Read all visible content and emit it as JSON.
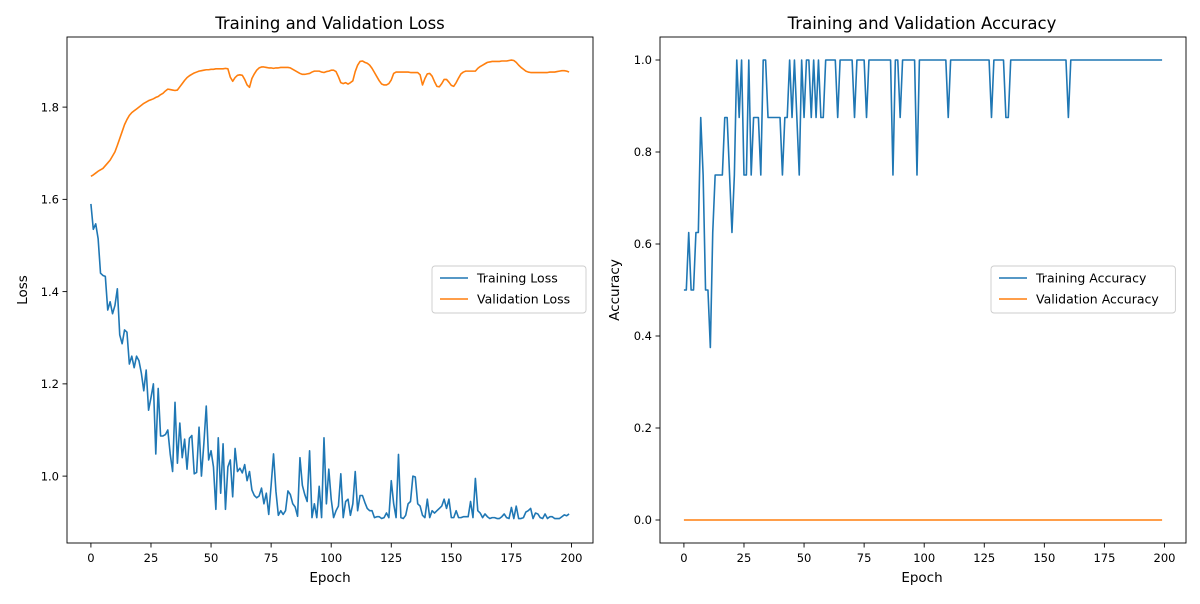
{
  "chart_data": [
    {
      "type": "line",
      "title": "Training and Validation Loss",
      "xlabel": "Epoch",
      "ylabel": "Loss",
      "xlim": [
        -9.95,
        208.95
      ],
      "ylim": [
        0.855,
        1.952
      ],
      "xticks": [
        0,
        25,
        50,
        75,
        100,
        125,
        150,
        175,
        200
      ],
      "yticks": [
        1.0,
        1.2,
        1.4,
        1.6,
        1.8
      ],
      "ytick_labels": [
        "1.0",
        "1.2",
        "1.4",
        "1.6",
        "1.8"
      ],
      "grid": false,
      "legend": "center-right",
      "series": [
        {
          "name": "Training Loss",
          "color": "#1f77b4",
          "values": [
            1.59,
            1.535,
            1.547,
            1.515,
            1.44,
            1.435,
            1.433,
            1.36,
            1.378,
            1.352,
            1.37,
            1.406,
            1.306,
            1.287,
            1.317,
            1.312,
            1.243,
            1.26,
            1.235,
            1.26,
            1.25,
            1.223,
            1.185,
            1.23,
            1.143,
            1.17,
            1.2,
            1.048,
            1.19,
            1.087,
            1.087,
            1.09,
            1.1,
            1.048,
            1.01,
            1.16,
            1.028,
            1.115,
            1.04,
            1.08,
            1.015,
            1.082,
            1.088,
            1.005,
            1.008,
            1.106,
            1.0,
            1.07,
            1.152,
            1.035,
            1.055,
            1.02,
            0.928,
            1.083,
            0.963,
            1.07,
            0.928,
            1.02,
            1.035,
            0.955,
            1.06,
            1.01,
            1.017,
            1.007,
            1.025,
            0.99,
            1.01,
            0.97,
            0.958,
            0.953,
            0.957,
            0.974,
            0.94,
            0.963,
            0.917,
            0.98,
            1.048,
            0.967,
            0.915,
            0.925,
            0.917,
            0.925,
            0.968,
            0.96,
            0.94,
            0.933,
            0.913,
            1.04,
            0.98,
            0.96,
            0.945,
            1.055,
            0.91,
            0.94,
            0.91,
            0.978,
            0.91,
            1.083,
            0.94,
            1.015,
            0.95,
            0.91,
            0.925,
            0.935,
            1.005,
            0.91,
            0.945,
            0.95,
            0.915,
            0.94,
            1.01,
            0.925,
            0.958,
            0.958,
            0.943,
            0.93,
            0.925,
            0.925,
            0.91,
            0.912,
            0.912,
            0.908,
            0.91,
            0.92,
            0.91,
            0.99,
            0.94,
            0.91,
            1.047,
            0.91,
            0.908,
            0.915,
            0.94,
            0.945,
            1.0,
            0.998,
            0.94,
            0.935,
            0.915,
            0.91,
            0.95,
            0.91,
            0.925,
            0.92,
            0.925,
            0.93,
            0.935,
            0.95,
            0.93,
            0.95,
            0.91,
            0.91,
            0.925,
            0.91,
            0.91,
            0.912,
            0.912,
            0.912,
            0.945,
            0.91,
            0.995,
            0.925,
            0.92,
            0.91,
            0.918,
            0.912,
            0.908,
            0.91,
            0.91,
            0.908,
            0.908,
            0.912,
            0.918,
            0.91,
            0.908,
            0.932,
            0.908,
            0.935,
            0.908,
            0.908,
            0.91,
            0.922,
            0.925,
            0.93,
            0.908,
            0.92,
            0.918,
            0.91,
            0.908,
            0.918,
            0.908,
            0.912,
            0.912,
            0.908,
            0.908,
            0.908,
            0.912,
            0.916,
            0.914,
            0.918
          ]
        },
        {
          "name": "Validation Loss",
          "color": "#ff7f0e",
          "values": [
            1.65,
            1.653,
            1.657,
            1.661,
            1.664,
            1.667,
            1.673,
            1.679,
            1.685,
            1.694,
            1.703,
            1.717,
            1.732,
            1.747,
            1.762,
            1.773,
            1.782,
            1.788,
            1.792,
            1.796,
            1.8,
            1.804,
            1.808,
            1.811,
            1.814,
            1.816,
            1.818,
            1.821,
            1.823,
            1.827,
            1.83,
            1.835,
            1.839,
            1.838,
            1.837,
            1.836,
            1.837,
            1.844,
            1.851,
            1.858,
            1.864,
            1.868,
            1.871,
            1.874,
            1.876,
            1.878,
            1.879,
            1.88,
            1.881,
            1.881,
            1.882,
            1.882,
            1.883,
            1.883,
            1.883,
            1.883,
            1.884,
            1.883,
            1.865,
            1.856,
            1.864,
            1.869,
            1.87,
            1.869,
            1.86,
            1.848,
            1.843,
            1.862,
            1.872,
            1.88,
            1.885,
            1.887,
            1.887,
            1.886,
            1.885,
            1.885,
            1.884,
            1.885,
            1.885,
            1.886,
            1.886,
            1.886,
            1.886,
            1.885,
            1.882,
            1.879,
            1.876,
            1.873,
            1.871,
            1.871,
            1.872,
            1.873,
            1.876,
            1.878,
            1.878,
            1.878,
            1.876,
            1.875,
            1.877,
            1.878,
            1.88,
            1.88,
            1.877,
            1.866,
            1.853,
            1.851,
            1.853,
            1.85,
            1.853,
            1.857,
            1.877,
            1.891,
            1.899,
            1.9,
            1.897,
            1.895,
            1.891,
            1.884,
            1.875,
            1.866,
            1.857,
            1.85,
            1.848,
            1.848,
            1.851,
            1.859,
            1.873,
            1.876,
            1.876,
            1.876,
            1.876,
            1.876,
            1.876,
            1.875,
            1.875,
            1.875,
            1.875,
            1.87,
            1.848,
            1.862,
            1.872,
            1.873,
            1.867,
            1.855,
            1.845,
            1.844,
            1.851,
            1.86,
            1.86,
            1.854,
            1.847,
            1.845,
            1.853,
            1.863,
            1.872,
            1.876,
            1.878,
            1.878,
            1.878,
            1.878,
            1.878,
            1.884,
            1.888,
            1.891,
            1.894,
            1.897,
            1.898,
            1.899,
            1.899,
            1.899,
            1.899,
            1.9,
            1.9,
            1.9,
            1.901,
            1.902,
            1.901,
            1.897,
            1.891,
            1.886,
            1.882,
            1.878,
            1.876,
            1.875,
            1.875,
            1.875,
            1.875,
            1.875,
            1.875,
            1.875,
            1.875,
            1.876,
            1.876,
            1.876,
            1.877,
            1.878,
            1.879,
            1.879,
            1.878,
            1.876
          ]
        }
      ]
    },
    {
      "type": "line",
      "title": "Training and Validation Accuracy",
      "xlabel": "Epoch",
      "ylabel": "Accuracy",
      "xlim": [
        -9.95,
        208.95
      ],
      "ylim": [
        -0.05,
        1.05
      ],
      "xticks": [
        0,
        25,
        50,
        75,
        100,
        125,
        150,
        175,
        200
      ],
      "yticks": [
        0.0,
        0.2,
        0.4,
        0.6,
        0.8,
        1.0
      ],
      "ytick_labels": [
        "0.0",
        "0.2",
        "0.4",
        "0.6",
        "0.8",
        "1.0"
      ],
      "grid": false,
      "legend": "center-right",
      "series": [
        {
          "name": "Training Accuracy",
          "color": "#1f77b4",
          "values": [
            0.5,
            0.5,
            0.625,
            0.5,
            0.5,
            0.625,
            0.625,
            0.875,
            0.75,
            0.5,
            0.5,
            0.375,
            0.625,
            0.75,
            0.75,
            0.75,
            0.75,
            0.875,
            0.875,
            0.75,
            0.625,
            0.75,
            1.0,
            0.875,
            1.0,
            0.75,
            0.75,
            1.0,
            0.75,
            0.875,
            0.875,
            0.875,
            0.75,
            1.0,
            1.0,
            0.875,
            0.875,
            0.875,
            0.875,
            0.875,
            0.875,
            0.75,
            0.875,
            0.875,
            1.0,
            0.875,
            1.0,
            0.875,
            0.75,
            1.0,
            0.875,
            1.0,
            1.0,
            0.875,
            1.0,
            0.875,
            1.0,
            0.875,
            0.875,
            1.0,
            1.0,
            1.0,
            1.0,
            1.0,
            0.875,
            1.0,
            1.0,
            1.0,
            1.0,
            1.0,
            1.0,
            0.875,
            1.0,
            1.0,
            1.0,
            1.0,
            0.875,
            1.0,
            1.0,
            1.0,
            1.0,
            1.0,
            1.0,
            1.0,
            1.0,
            1.0,
            1.0,
            0.75,
            1.0,
            1.0,
            0.875,
            1.0,
            1.0,
            1.0,
            1.0,
            1.0,
            1.0,
            0.75,
            1.0,
            1.0,
            1.0,
            1.0,
            1.0,
            1.0,
            1.0,
            1.0,
            1.0,
            1.0,
            1.0,
            1.0,
            0.875,
            1.0,
            1.0,
            1.0,
            1.0,
            1.0,
            1.0,
            1.0,
            1.0,
            1.0,
            1.0,
            1.0,
            1.0,
            1.0,
            1.0,
            1.0,
            1.0,
            1.0,
            0.875,
            1.0,
            1.0,
            1.0,
            1.0,
            1.0,
            0.875,
            0.875,
            1.0,
            1.0,
            1.0,
            1.0,
            1.0,
            1.0,
            1.0,
            1.0,
            1.0,
            1.0,
            1.0,
            1.0,
            1.0,
            1.0,
            1.0,
            1.0,
            1.0,
            1.0,
            1.0,
            1.0,
            1.0,
            1.0,
            1.0,
            1.0,
            0.875,
            1.0,
            1.0,
            1.0,
            1.0,
            1.0,
            1.0,
            1.0,
            1.0,
            1.0,
            1.0,
            1.0,
            1.0,
            1.0,
            1.0,
            1.0,
            1.0,
            1.0,
            1.0,
            1.0,
            1.0,
            1.0,
            1.0,
            1.0,
            1.0,
            1.0,
            1.0,
            1.0,
            1.0,
            1.0,
            1.0,
            1.0,
            1.0,
            1.0,
            1.0,
            1.0,
            1.0,
            1.0,
            1.0,
            1.0
          ]
        },
        {
          "name": "Validation Accuracy",
          "color": "#ff7f0e",
          "values": [
            0,
            0,
            0,
            0,
            0,
            0,
            0,
            0,
            0,
            0,
            0,
            0,
            0,
            0,
            0,
            0,
            0,
            0,
            0,
            0,
            0,
            0,
            0,
            0,
            0,
            0,
            0,
            0,
            0,
            0,
            0,
            0,
            0,
            0,
            0,
            0,
            0,
            0,
            0,
            0,
            0,
            0,
            0,
            0,
            0,
            0,
            0,
            0,
            0,
            0,
            0,
            0,
            0,
            0,
            0,
            0,
            0,
            0,
            0,
            0,
            0,
            0,
            0,
            0,
            0,
            0,
            0,
            0,
            0,
            0,
            0,
            0,
            0,
            0,
            0,
            0,
            0,
            0,
            0,
            0,
            0,
            0,
            0,
            0,
            0,
            0,
            0,
            0,
            0,
            0,
            0,
            0,
            0,
            0,
            0,
            0,
            0,
            0,
            0,
            0,
            0,
            0,
            0,
            0,
            0,
            0,
            0,
            0,
            0,
            0,
            0,
            0,
            0,
            0,
            0,
            0,
            0,
            0,
            0,
            0,
            0,
            0,
            0,
            0,
            0,
            0,
            0,
            0,
            0,
            0,
            0,
            0,
            0,
            0,
            0,
            0,
            0,
            0,
            0,
            0,
            0,
            0,
            0,
            0,
            0,
            0,
            0,
            0,
            0,
            0,
            0,
            0,
            0,
            0,
            0,
            0,
            0,
            0,
            0,
            0,
            0,
            0,
            0,
            0,
            0,
            0,
            0,
            0,
            0,
            0,
            0,
            0,
            0,
            0,
            0,
            0,
            0,
            0,
            0,
            0,
            0,
            0,
            0,
            0,
            0,
            0,
            0,
            0,
            0,
            0,
            0,
            0,
            0,
            0,
            0,
            0,
            0,
            0,
            0,
            0
          ]
        }
      ]
    }
  ]
}
